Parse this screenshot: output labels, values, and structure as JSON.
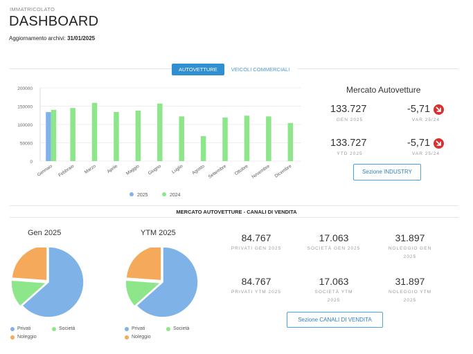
{
  "header": {
    "eyebrow": "IMMATRICOLATO",
    "title": "DASHBOARD",
    "updated_label": "Aggiornamento archivi:",
    "updated_date": "31/01/2025"
  },
  "tabs": [
    {
      "label": "AUTOVETTURE",
      "active": true
    },
    {
      "label": "VEICOLI COMMERCIALI",
      "active": false
    }
  ],
  "chart_data": {
    "type": "bar",
    "categories": [
      "Gennaio",
      "Febbraio",
      "Marzo",
      "Aprile",
      "Maggio",
      "Giugno",
      "Luglio",
      "Agosto",
      "Settembre",
      "Ottobre",
      "Novembre",
      "Dicembre"
    ],
    "series": [
      {
        "name": "2025",
        "color": "#7fb3e8",
        "values": [
          133727,
          null,
          null,
          null,
          null,
          null,
          null,
          null,
          null,
          null,
          null,
          null
        ]
      },
      {
        "name": "2024",
        "color": "#8ee68a",
        "values": [
          140000,
          145000,
          159000,
          134000,
          138000,
          157000,
          122000,
          68000,
          119000,
          124000,
          122000,
          104000
        ]
      }
    ],
    "yticks": [
      "200000",
      "150000",
      "100000",
      "50000",
      "0"
    ],
    "ylim": [
      0,
      200000
    ],
    "legend_position": "bottom",
    "grid": true
  },
  "market": {
    "title": "Mercato Autovetture",
    "rows": [
      {
        "value": "133.727",
        "label": "GEN 2025",
        "var_value": "-5,71",
        "var_label": "VAR 25/24"
      },
      {
        "value": "133.727",
        "label": "YTD 2025",
        "var_value": "-5,71",
        "var_label": "VAR 25/24"
      }
    ],
    "button": "Sezione INDUSTRY",
    "badge_icon": "arrow-down-right-icon",
    "badge_color": "#d93030"
  },
  "channels": {
    "section_title": "MERCATO AUTOVETTURE - CANALI DI VENDITA",
    "pies": [
      {
        "title": "Gen 2025",
        "values": [
          84767,
          17063,
          31897
        ]
      },
      {
        "title": "YTM 2025",
        "values": [
          84767,
          17063,
          31897
        ]
      }
    ],
    "legend": [
      {
        "label": "Privati",
        "color": "#7fb3e8"
      },
      {
        "label": "Società",
        "color": "#8ee68a"
      },
      {
        "label": "Noleggio",
        "color": "#f5a95a"
      }
    ],
    "stats_row1": [
      {
        "value": "84.767",
        "label1": "PRIVATI GEN 2025",
        "label2": ""
      },
      {
        "value": "17.063",
        "label1": "SOCIETÀ GEN 2025",
        "label2": ""
      },
      {
        "value": "31.897",
        "label1": "NOLEGGIO GEN",
        "label2": "2025"
      }
    ],
    "stats_row2": [
      {
        "value": "84.767",
        "label1": "PRIVATI YTM 2025",
        "label2": ""
      },
      {
        "value": "17.063",
        "label1": "SOCIETÀ YTM",
        "label2": "2025"
      },
      {
        "value": "31.897",
        "label1": "NOLEGGIO YTM",
        "label2": "2025"
      }
    ],
    "button": "Sezione CANALI DI VENDITA"
  }
}
